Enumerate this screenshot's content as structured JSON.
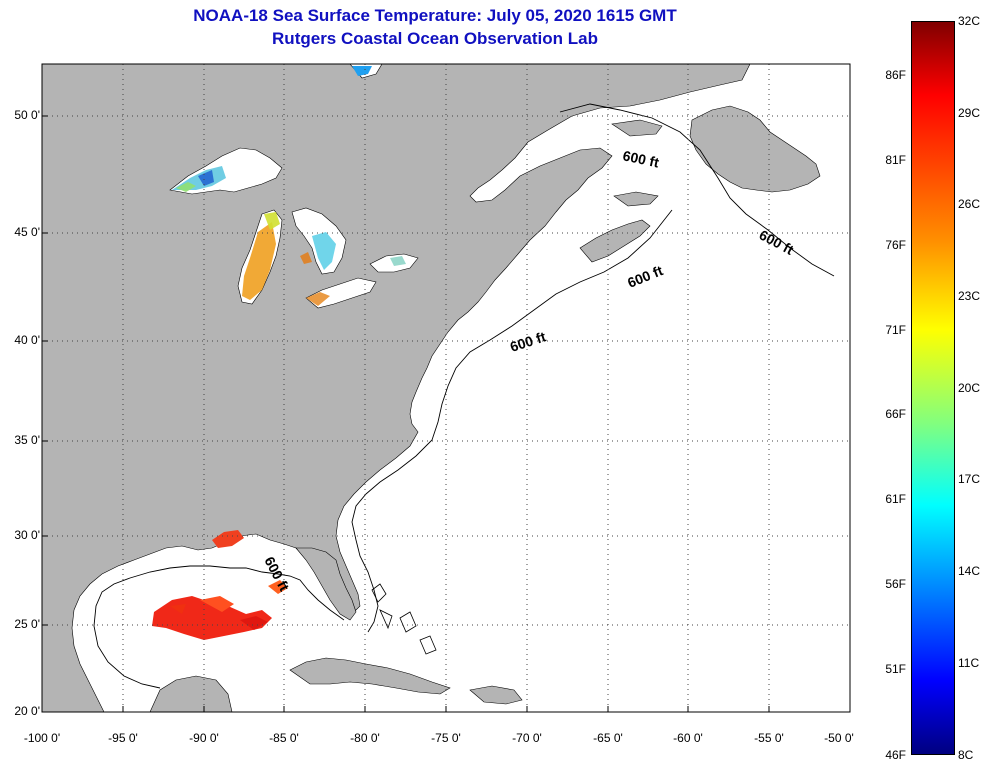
{
  "title": {
    "line1": "NOAA-18 Sea Surface Temperature:  July 05, 2020 1615 GMT",
    "line2": "Rutgers Coastal Ocean Observation Lab"
  },
  "map": {
    "lat_ticks": [
      "50 0'",
      "45 0'",
      "40 0'",
      "35 0'",
      "30 0'",
      "25 0'",
      "20 0'"
    ],
    "lon_ticks": [
      "-100 0'",
      "-95 0'",
      "-90 0'",
      "-85 0'",
      "-80 0'",
      "-75 0'",
      "-70 0'",
      "-65 0'",
      "-60 0'",
      "-55 0'",
      "-50 0'"
    ],
    "isobath_label": "600 ft",
    "land_color": "#b4b4b4",
    "ocean_color": "#ffffff"
  },
  "colorbar": {
    "celsius": [
      "32C",
      "29C",
      "26C",
      "23C",
      "20C",
      "17C",
      "14C",
      "11C",
      "8C"
    ],
    "fahrenheit": [
      "86F",
      "81F",
      "76F",
      "71F",
      "66F",
      "61F",
      "56F",
      "51F",
      "46F"
    ],
    "colors_top_to_bottom": [
      "#800000",
      "#ff0000",
      "#ff8000",
      "#ffff00",
      "#80ff80",
      "#00ffff",
      "#0080ff",
      "#0000ff",
      "#000080"
    ]
  }
}
